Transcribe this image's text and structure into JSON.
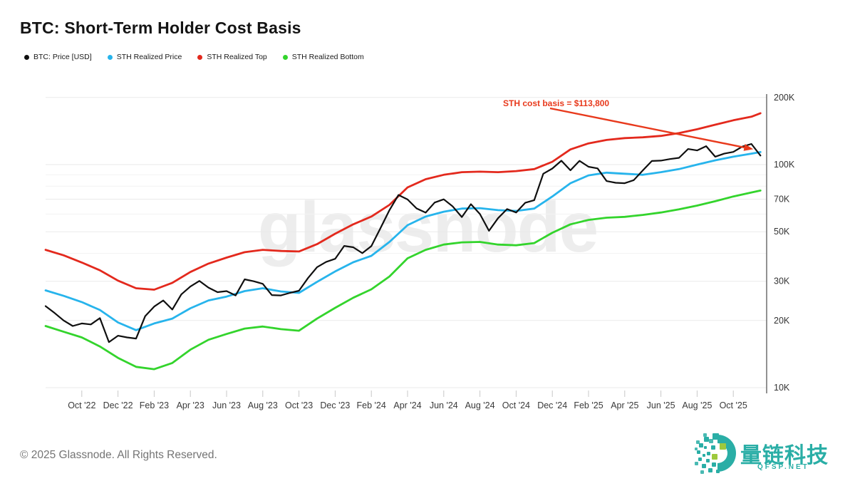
{
  "header": {
    "title": "BTC: Short-Term Holder Cost Basis"
  },
  "watermark": {
    "text": "glassnode"
  },
  "footer": {
    "copyright": "© 2025 Glassnode. All Rights Reserved.",
    "logo_text": "量链科技",
    "logo_subtext": "QFSP.NET",
    "logo_color": "#2aaea6",
    "logo_accent_color": "#9dc93d"
  },
  "chart_data": {
    "type": "line",
    "title": "BTC: Short-Term Holder Cost Basis",
    "log_scale": true,
    "x_unit": "months, Aug 2022 to mid-Oct 2025",
    "ylim": [
      10000,
      200000
    ],
    "grid": true,
    "legend_position": "top-left",
    "grid_values_usd": [
      10000,
      20000,
      30000,
      40000,
      50000,
      60000,
      70000,
      80000,
      90000,
      100000,
      200000
    ],
    "y_ticks": [
      {
        "value": 200000,
        "label": "200K"
      },
      {
        "value": 100000,
        "label": "100K"
      },
      {
        "value": 70000,
        "label": "70K"
      },
      {
        "value": 50000,
        "label": "50K"
      },
      {
        "value": 30000,
        "label": "30K"
      },
      {
        "value": 20000,
        "label": "20K"
      },
      {
        "value": 10000,
        "label": "10K"
      }
    ],
    "x_tick_labels": [
      "Oct '22",
      "Dec '22",
      "Feb '23",
      "Apr '23",
      "Jun '23",
      "Aug '23",
      "Oct '23",
      "Dec '23",
      "Feb '24",
      "Apr '24",
      "Jun '24",
      "Aug '24",
      "Oct '24",
      "Dec '24",
      "Feb '25",
      "Apr '25",
      "Jun '25",
      "Aug '25",
      "Oct '25"
    ],
    "annotation": {
      "label": "STH cost basis = $113,800",
      "value": 113800,
      "color": "#e8391c"
    },
    "series": [
      {
        "name": "STH Realized Bottom",
        "color": "#33d42c",
        "width": 2.8,
        "t_step": 1,
        "values_kusd": [
          18.9,
          17.8,
          16.8,
          15.3,
          13.6,
          12.4,
          12.1,
          12.9,
          14.8,
          16.4,
          17.4,
          18.4,
          18.8,
          18.3,
          18.0,
          20.4,
          22.8,
          25.3,
          27.6,
          31.5,
          38.0,
          41.5,
          43.8,
          44.8,
          45.0,
          43.8,
          43.5,
          44.5,
          49.5,
          54.0,
          56.5,
          57.8,
          58.3,
          59.5,
          61.0,
          63.0,
          65.5,
          68.5,
          72.0,
          75.0,
          76.5
        ]
      },
      {
        "name": "STH Realized Top",
        "color": "#e3291d",
        "width": 2.8,
        "t_step": 1,
        "values_kusd": [
          41.5,
          39.2,
          36.4,
          33.6,
          30.2,
          27.9,
          27.5,
          29.5,
          33.0,
          36.0,
          38.3,
          40.5,
          41.5,
          41.0,
          40.8,
          44.0,
          49.0,
          54.0,
          58.5,
          66.0,
          79.0,
          86.0,
          90.0,
          92.5,
          93.0,
          92.5,
          93.5,
          95.5,
          103.0,
          117.0,
          124.5,
          129.0,
          131.5,
          132.5,
          134.5,
          138.5,
          144.0,
          151.0,
          158.0,
          164.0,
          170.0
        ]
      },
      {
        "name": "STH Realized Price",
        "color": "#27b4ec",
        "width": 2.8,
        "t_step": 1,
        "values_kusd": [
          27.3,
          25.8,
          24.2,
          22.3,
          19.6,
          18.1,
          19.4,
          20.4,
          22.7,
          24.6,
          25.6,
          27.1,
          27.9,
          27.0,
          26.6,
          29.8,
          33.2,
          36.5,
          39.0,
          45.0,
          53.5,
          58.5,
          61.5,
          63.5,
          63.8,
          62.5,
          62.0,
          63.5,
          72.0,
          82.5,
          89.5,
          92.0,
          91.0,
          90.0,
          92.5,
          95.5,
          100.0,
          104.5,
          108.5,
          112.0,
          113.8
        ]
      },
      {
        "name": "BTC: Price [USD]",
        "color": "#0f0f0f",
        "width": 2.2,
        "t_step": 0.5,
        "values_kusd": [
          23.2,
          21.6,
          20.0,
          18.9,
          19.4,
          19.2,
          20.5,
          16.0,
          17.1,
          16.8,
          16.6,
          20.9,
          23.1,
          24.6,
          22.4,
          26.2,
          28.4,
          30.1,
          28.1,
          26.8,
          27.1,
          25.9,
          30.6,
          30.0,
          29.2,
          26.0,
          25.9,
          26.6,
          27.2,
          31.0,
          34.7,
          36.6,
          37.8,
          43.2,
          42.6,
          40.1,
          43.1,
          51.8,
          62.5,
          73.1,
          69.8,
          63.6,
          60.9,
          67.6,
          69.9,
          64.9,
          58.2,
          66.5,
          60.0,
          50.5,
          57.5,
          63.2,
          61.0,
          67.4,
          69.3,
          91.0,
          96.0,
          104.1,
          94.3,
          104.0,
          97.8,
          96.2,
          84.4,
          82.9,
          82.5,
          85.2,
          94.2,
          103.8,
          104.2,
          105.9,
          107.2,
          117.5,
          115.8,
          121.0,
          108.5,
          112.0,
          114.0,
          120.5,
          123.8,
          109.8
        ]
      }
    ],
    "legend_order": [
      "BTC: Price [USD]",
      "STH Realized Price",
      "STH Realized Top",
      "STH Realized Bottom"
    ]
  }
}
